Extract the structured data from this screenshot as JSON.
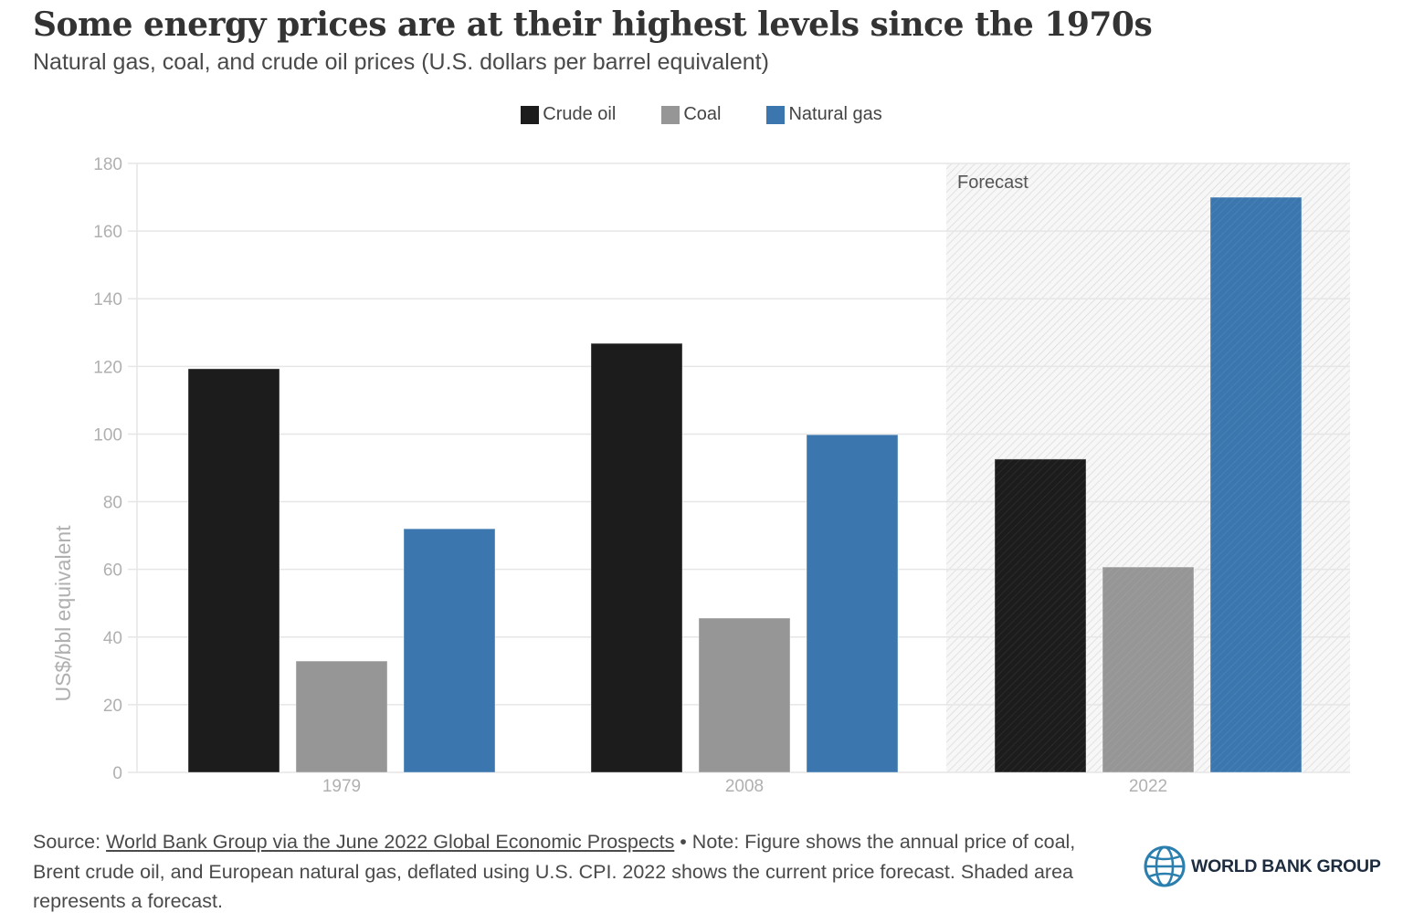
{
  "header": {
    "title": "Some energy prices are at their highest levels since the 1970s",
    "subtitle": "Natural gas, coal, and crude oil prices (U.S. dollars per barrel equivalent)"
  },
  "colors": {
    "crude_oil": "#1c1c1c",
    "coal": "#969696",
    "natural_gas": "#3b77ae",
    "grid": "#e6e6e6",
    "tick_text": "#b0b0b0"
  },
  "chart_data": {
    "type": "bar",
    "title": "Some energy prices are at their highest levels since the 1970s",
    "subtitle": "Natural gas, coal, and crude oil prices (U.S. dollars per barrel equivalent)",
    "xlabel": "",
    "ylabel": "US$/bbl equivalent",
    "ylim": [
      0,
      180
    ],
    "yticks": [
      0,
      20,
      40,
      60,
      80,
      100,
      120,
      140,
      160,
      180
    ],
    "grid": true,
    "legend_position": "top-center",
    "categories": [
      "1979",
      "2008",
      "2022"
    ],
    "series": [
      {
        "name": "Crude oil",
        "key": "crude_oil",
        "values": [
          119.3,
          126.8,
          92.6
        ]
      },
      {
        "name": "Coal",
        "key": "coal",
        "values": [
          32.9,
          45.6,
          60.7
        ]
      },
      {
        "name": "Natural gas",
        "key": "natural_gas",
        "values": [
          72.0,
          99.8,
          170.0
        ]
      }
    ],
    "annotations": [
      {
        "text": "Forecast",
        "applies_to_category": "2022",
        "shaded": true
      }
    ]
  },
  "footer": {
    "source_prefix": "Source: ",
    "source_link": "World Bank Group via the June 2022 Global Economic Prospects",
    "note": " • Note: Figure shows the annual price of coal, Brent crude oil, and European natural gas, deflated using U.S. CPI. 2022 shows the current price forecast. Shaded area represents a forecast."
  },
  "logo": {
    "icon": "globe-icon",
    "text": "WORLD BANK GROUP"
  }
}
